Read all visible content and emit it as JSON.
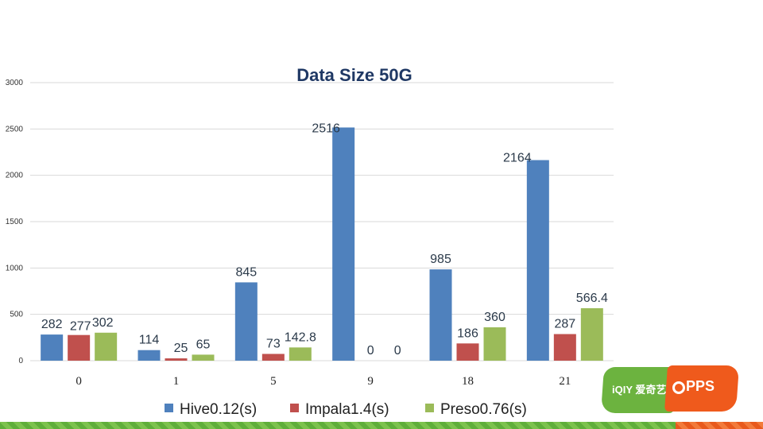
{
  "chart_data": {
    "type": "bar",
    "title": "Data Size 50G",
    "xlabel": "",
    "ylabel": "",
    "categories": [
      "0",
      "1",
      "5",
      "9",
      "18",
      "21"
    ],
    "ylim": [
      0,
      3000
    ],
    "yticks": [
      0,
      500,
      1000,
      1500,
      2000,
      2500,
      3000
    ],
    "grid": true,
    "legend_position": "bottom",
    "series": [
      {
        "name": "Hive0.12(s)",
        "color": "#4f81bd",
        "values": [
          282,
          114,
          845,
          2516,
          985,
          2164
        ],
        "labels": [
          "282",
          "114",
          "845",
          "2516",
          "985",
          "2164"
        ]
      },
      {
        "name": "Impala1.4(s)",
        "color": "#c0504d",
        "values": [
          277,
          25,
          73,
          0,
          186,
          287
        ],
        "labels": [
          "277",
          "25",
          "73",
          "0",
          "186",
          "287"
        ]
      },
      {
        "name": "Preso0.76(s)",
        "color": "#9bbb59",
        "values": [
          302,
          65,
          142.8,
          0,
          360,
          566.4
        ],
        "labels": [
          "302",
          "65",
          "142.8",
          "0",
          "360",
          "566.4"
        ]
      }
    ]
  },
  "logo": {
    "left_text": "iQIY 爱奇艺",
    "right_text": "PPS",
    "left_color": "#6cb33f",
    "right_color": "#ef5a1c"
  }
}
